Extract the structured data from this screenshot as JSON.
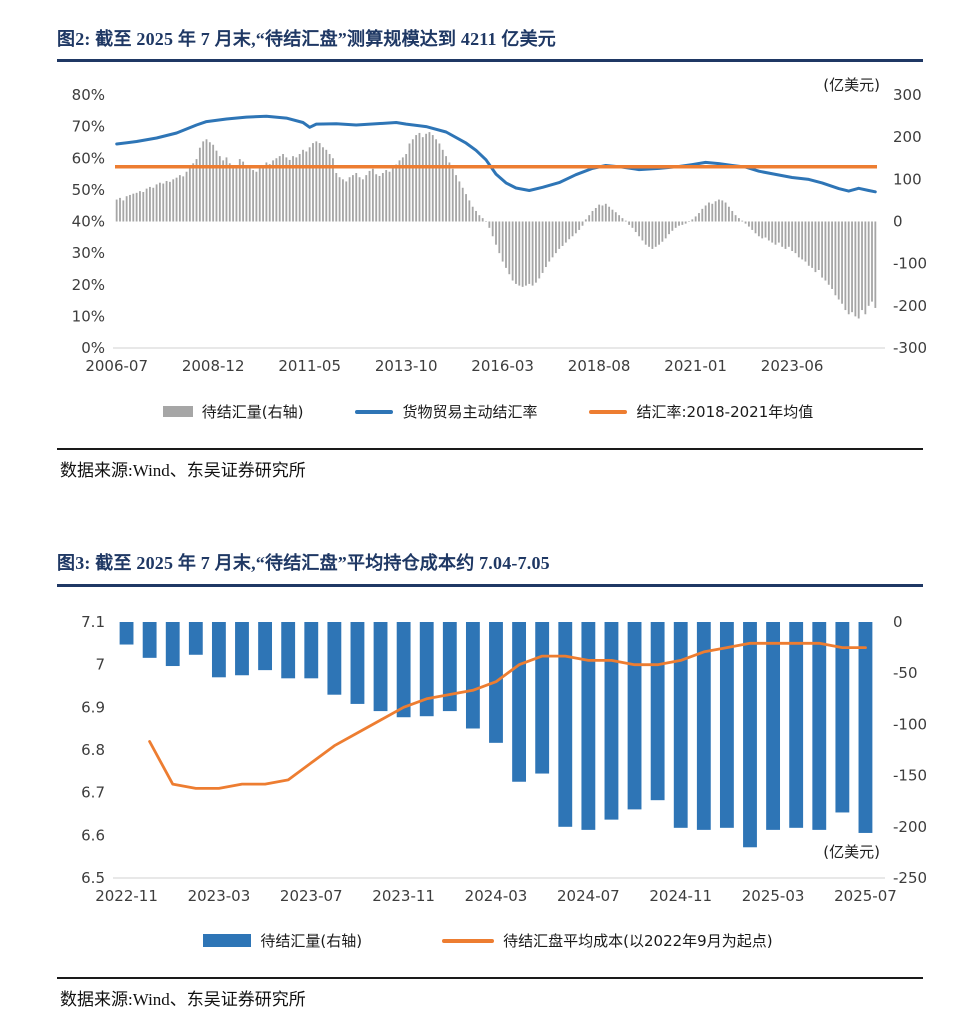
{
  "colors": {
    "title_navy": "#1f3864",
    "bar_gray": "#a6a6a6",
    "line_blue": "#2e75b6",
    "line_orange": "#ed7d31",
    "axis_text": "#3d3d3d"
  },
  "figure2": {
    "title": "图2: 截至 2025 年 7 月末,“待结汇盘”测算规模达到 4211 亿美元",
    "source": "数据来源:Wind、东吴证券研究所"
  },
  "figure3": {
    "title": "图3: 截至 2025 年 7 月末,“待结汇盘”平均持仓成本约 7.04-7.05",
    "source": "数据来源:Wind、东吴证券研究所"
  },
  "chart_data": [
    {
      "type": "combo_bar_line",
      "frequency": "monthly",
      "x_start": "2006-07",
      "x_end": "2025-07",
      "x_tick_labels": [
        "2006-07",
        "2008-12",
        "2011-05",
        "2013-10",
        "2016-03",
        "2018-08",
        "2021-01",
        "2023-06"
      ],
      "x_tick_month_indices": [
        0,
        29,
        58,
        87,
        116,
        145,
        174,
        203
      ],
      "left_axis": {
        "unit": "%",
        "min": 0,
        "max": 80,
        "tick_labels": [
          "80%",
          "70%",
          "60%",
          "50%",
          "40%",
          "30%",
          "20%",
          "10%",
          "0%"
        ]
      },
      "right_axis": {
        "unit": "亿美元",
        "min": -300,
        "max": 300,
        "title": "(亿美元)",
        "tick_labels": [
          "300",
          "200",
          "100",
          "0",
          "-100",
          "-200",
          "-300"
        ]
      },
      "series": [
        {
          "name": "待结汇量(右轴)",
          "type": "bar",
          "axis": "right",
          "color": "#a6a6a6",
          "values": [
            52,
            56,
            50,
            60,
            63,
            66,
            68,
            72,
            70,
            78,
            82,
            80,
            88,
            92,
            90,
            96,
            94,
            100,
            104,
            110,
            107,
            118,
            128,
            138,
            148,
            175,
            190,
            195,
            188,
            182,
            168,
            155,
            145,
            152,
            138,
            128,
            132,
            148,
            142,
            128,
            132,
            122,
            118,
            126,
            132,
            140,
            136,
            145,
            150,
            155,
            160,
            152,
            146,
            155,
            152,
            160,
            170,
            166,
            176,
            186,
            190,
            186,
            176,
            170,
            160,
            150,
            115,
            105,
            100,
            95,
            105,
            110,
            115,
            105,
            100,
            110,
            120,
            125,
            112,
            108,
            115,
            122,
            118,
            128,
            135,
            145,
            152,
            160,
            185,
            195,
            205,
            210,
            200,
            208,
            212,
            205,
            195,
            185,
            170,
            155,
            140,
            125,
            110,
            95,
            80,
            65,
            50,
            35,
            25,
            15,
            8,
            0,
            -15,
            -35,
            -55,
            -75,
            -95,
            -110,
            -125,
            -140,
            -148,
            -152,
            -155,
            -152,
            -148,
            -152,
            -145,
            -135,
            -122,
            -108,
            -95,
            -85,
            -75,
            -65,
            -58,
            -50,
            -42,
            -35,
            -28,
            -20,
            -10,
            5,
            15,
            25,
            32,
            40,
            38,
            42,
            35,
            28,
            22,
            15,
            8,
            2,
            -8,
            -15,
            -25,
            -35,
            -45,
            -55,
            -60,
            -65,
            -60,
            -55,
            -48,
            -40,
            -30,
            -22,
            -15,
            -10,
            -8,
            -5,
            0,
            5,
            12,
            20,
            30,
            38,
            45,
            42,
            48,
            52,
            50,
            45,
            35,
            25,
            15,
            8,
            2,
            -5,
            -12,
            -20,
            -28,
            -35,
            -40,
            -38,
            -45,
            -50,
            -55,
            -50,
            -60,
            -65,
            -60,
            -70,
            -75,
            -85,
            -90,
            -95,
            -105,
            -110,
            -120,
            -115,
            -133,
            -140,
            -150,
            -160,
            -175,
            -185,
            -195,
            -210,
            -220,
            -215,
            -225,
            -230,
            -210,
            -220,
            -200,
            -190,
            -205
          ]
        },
        {
          "name": "货物贸易主动结汇率",
          "type": "line",
          "axis": "left",
          "color": "#2e75b6",
          "points_format": "[month_index_from_2006-07, percent]",
          "points": [
            [
              0,
              64.5
            ],
            [
              6,
              65.3
            ],
            [
              12,
              66.4
            ],
            [
              18,
              68.0
            ],
            [
              24,
              70.5
            ],
            [
              27,
              71.6
            ],
            [
              33,
              72.4
            ],
            [
              39,
              73.0
            ],
            [
              45,
              73.3
            ],
            [
              51,
              72.7
            ],
            [
              56,
              71.3
            ],
            [
              58,
              69.8
            ],
            [
              60,
              70.8
            ],
            [
              66,
              70.9
            ],
            [
              72,
              70.5
            ],
            [
              78,
              70.9
            ],
            [
              84,
              71.3
            ],
            [
              87,
              70.8
            ],
            [
              93,
              70.0
            ],
            [
              99,
              68.3
            ],
            [
              105,
              64.8
            ],
            [
              108,
              62.5
            ],
            [
              111,
              59.5
            ],
            [
              114,
              55.0
            ],
            [
              117,
              52.2
            ],
            [
              120,
              50.6
            ],
            [
              124,
              49.8
            ],
            [
              128,
              50.8
            ],
            [
              133,
              52.3
            ],
            [
              138,
              54.8
            ],
            [
              143,
              56.8
            ],
            [
              147,
              57.7
            ],
            [
              152,
              57.2
            ],
            [
              157,
              56.4
            ],
            [
              163,
              56.8
            ],
            [
              169,
              57.4
            ],
            [
              173,
              58.0
            ],
            [
              177,
              58.7
            ],
            [
              181,
              58.3
            ],
            [
              185,
              57.7
            ],
            [
              189,
              57.2
            ],
            [
              193,
              55.9
            ],
            [
              198,
              54.9
            ],
            [
              203,
              53.9
            ],
            [
              208,
              53.3
            ],
            [
              212,
              52.2
            ],
            [
              217,
              50.4
            ],
            [
              220,
              49.6
            ],
            [
              223,
              50.5
            ],
            [
              226,
              49.8
            ],
            [
              228,
              49.4
            ]
          ]
        },
        {
          "name": "结汇率:2018-2021年均值",
          "type": "refline",
          "axis": "left",
          "color": "#ed7d31",
          "value": 57.3
        }
      ]
    },
    {
      "type": "combo_bar_line",
      "frequency": "monthly",
      "x_start": "2022-11",
      "x_end": "2025-07",
      "x_tick_labels": [
        "2022-11",
        "2023-03",
        "2023-07",
        "2023-11",
        "2024-03",
        "2024-07",
        "2024-11",
        "2025-03",
        "2025-07"
      ],
      "x_tick_month_indices": [
        0,
        4,
        8,
        12,
        16,
        20,
        24,
        28,
        32
      ],
      "left_axis": {
        "unit": "CNY per USD",
        "min": 6.5,
        "max": 7.1,
        "tick_labels": [
          "7.1",
          "7",
          "6.9",
          "6.8",
          "6.7",
          "6.6",
          "6.5"
        ]
      },
      "right_axis": {
        "unit": "亿美元",
        "min": -250,
        "max": 0,
        "title": "(亿美元)",
        "tick_labels": [
          "0",
          "-50",
          "-100",
          "-150",
          "-200",
          "-250"
        ]
      },
      "series": [
        {
          "name": "待结汇量(右轴)",
          "type": "bar",
          "axis": "right",
          "color": "#2e75b6",
          "values": [
            -22,
            -35,
            -43,
            -32,
            -54,
            -52,
            -47,
            -55,
            -55,
            -71,
            -80,
            -87,
            -93,
            -92,
            -87,
            -104,
            -118,
            -156,
            -148,
            -200,
            -203,
            -193,
            -183,
            -174,
            -201,
            -203,
            -201,
            -220,
            -203,
            -201,
            -203,
            -186,
            -206
          ]
        },
        {
          "name": "待结汇盘平均成本(以2022年9月为起点)",
          "type": "line",
          "axis": "left",
          "color": "#ed7d31",
          "start_index": 1,
          "line_start": "2022-12",
          "values": [
            6.82,
            6.72,
            6.71,
            6.71,
            6.72,
            6.72,
            6.73,
            6.77,
            6.81,
            6.84,
            6.87,
            6.9,
            6.92,
            6.93,
            6.94,
            6.96,
            7.0,
            7.02,
            7.02,
            7.01,
            7.01,
            7.0,
            7.0,
            7.01,
            7.03,
            7.04,
            7.05,
            7.05,
            7.05,
            7.05,
            7.04,
            7.04
          ]
        }
      ]
    }
  ]
}
